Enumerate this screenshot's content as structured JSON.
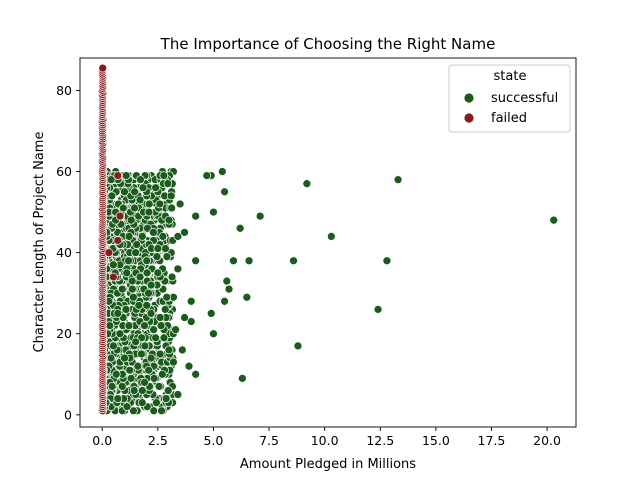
{
  "chart_data": {
    "type": "scatter",
    "title": "The Importance of Choosing the Right Name",
    "xlabel": "Amount Pledged in Millions",
    "ylabel": "Character Length of Project Name",
    "xlim": [
      -1.0,
      21.3
    ],
    "ylim": [
      -3,
      88
    ],
    "xticks": [
      0.0,
      2.5,
      5.0,
      7.5,
      10.0,
      12.5,
      15.0,
      17.5,
      20.0
    ],
    "xtick_labels": [
      "0.0",
      "2.5",
      "5.0",
      "7.5",
      "10.0",
      "12.5",
      "15.0",
      "17.5",
      "20.0"
    ],
    "yticks": [
      0,
      20,
      40,
      60,
      80
    ],
    "ytick_labels": [
      "0",
      "20",
      "40",
      "60",
      "80"
    ],
    "grid": false,
    "legend": {
      "title": "state",
      "placement": "top-right",
      "entries": [
        {
          "label": "successful",
          "color": "#1a5c1a"
        },
        {
          "label": "failed",
          "color": "#8b1a1a"
        }
      ]
    },
    "series": [
      {
        "name": "successful",
        "color": "#1a5c1a",
        "points": [
          [
            20.3,
            48
          ],
          [
            13.3,
            58
          ],
          [
            12.8,
            38
          ],
          [
            12.4,
            26
          ],
          [
            10.3,
            44
          ],
          [
            9.2,
            57
          ],
          [
            8.8,
            17
          ],
          [
            8.6,
            38
          ],
          [
            7.1,
            49
          ],
          [
            6.6,
            38
          ],
          [
            6.5,
            29
          ],
          [
            6.3,
            9
          ],
          [
            6.2,
            46
          ],
          [
            5.9,
            38
          ],
          [
            5.7,
            31
          ],
          [
            5.6,
            33
          ],
          [
            5.5,
            28
          ],
          [
            5.5,
            55
          ],
          [
            5.4,
            60
          ],
          [
            5.0,
            50
          ],
          [
            5.0,
            20
          ],
          [
            4.9,
            25
          ],
          [
            4.9,
            59
          ],
          [
            4.7,
            59
          ],
          [
            4.2,
            10
          ],
          [
            4.2,
            49
          ],
          [
            4.2,
            38
          ],
          [
            4.0,
            28
          ],
          [
            4.0,
            23
          ],
          [
            3.9,
            12
          ],
          [
            3.7,
            24
          ],
          [
            3.7,
            45
          ],
          [
            3.6,
            16
          ],
          [
            3.5,
            52
          ],
          [
            3.4,
            5
          ],
          [
            3.4,
            36
          ],
          [
            3.4,
            44
          ],
          [
            3.3,
            21
          ],
          [
            3.2,
            13
          ],
          [
            3.2,
            29
          ],
          [
            3.1,
            54
          ],
          [
            3.0,
            48
          ],
          [
            3.0,
            16
          ],
          [
            2.9,
            29
          ],
          [
            2.8,
            11
          ],
          [
            2.7,
            10
          ],
          [
            2.6,
            15
          ],
          [
            2.6,
            24
          ],
          [
            2.5,
            35
          ],
          [
            2.5,
            41
          ],
          [
            2.4,
            56
          ],
          [
            2.4,
            19
          ],
          [
            2.3,
            45
          ],
          [
            2.2,
            14
          ],
          [
            2.2,
            32
          ],
          [
            2.1,
            50
          ],
          [
            2.0,
            27
          ],
          [
            2.0,
            38
          ],
          [
            1.9,
            22
          ],
          [
            1.9,
            8
          ],
          [
            1.8,
            6
          ],
          [
            1.8,
            3
          ],
          [
            1.8,
            44
          ],
          [
            1.7,
            34
          ],
          [
            1.7,
            53
          ],
          [
            1.6,
            12
          ],
          [
            1.5,
            40
          ],
          [
            1.5,
            18
          ],
          [
            1.4,
            29
          ],
          [
            1.3,
            9
          ],
          [
            1.3,
            48
          ],
          [
            1.2,
            22
          ],
          [
            1.1,
            35
          ],
          [
            1.0,
            14
          ],
          [
            1.0,
            55
          ],
          [
            0.9,
            7
          ],
          [
            0.9,
            31
          ],
          [
            0.8,
            42
          ],
          [
            0.7,
            4
          ],
          [
            0.7,
            25
          ],
          [
            0.6,
            50
          ],
          [
            0.5,
            17
          ],
          [
            0.5,
            37
          ],
          [
            0.4,
            58
          ],
          [
            0.3,
            28
          ],
          [
            0.2,
            45
          ]
        ],
        "dense_band": {
          "x_range": [
            0.0,
            3.2
          ],
          "y_range": [
            1,
            60
          ],
          "approx_points": 1500
        }
      },
      {
        "name": "failed",
        "color": "#8b1a1a",
        "points": [
          [
            0.7,
            59
          ],
          [
            0.8,
            49
          ],
          [
            0.7,
            43
          ],
          [
            0.5,
            34
          ],
          [
            0.3,
            40
          ]
        ],
        "column": {
          "x": 0.0,
          "y_range": [
            1,
            85
          ]
        }
      }
    ]
  }
}
